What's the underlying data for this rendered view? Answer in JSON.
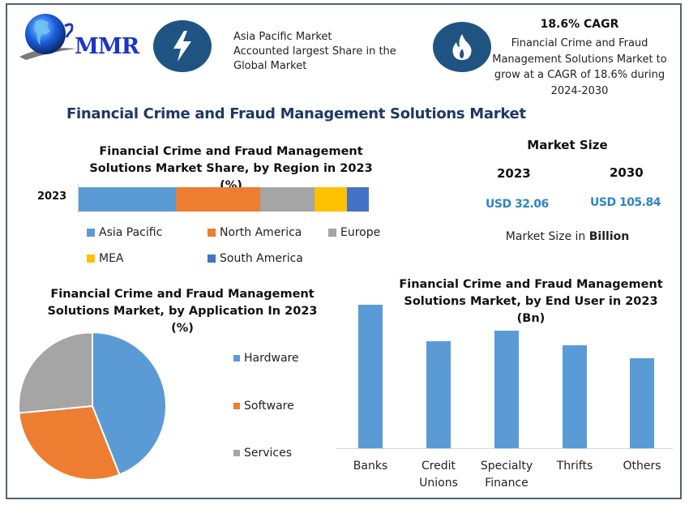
{
  "header": {
    "logo_text": "MMR",
    "info_left": {
      "icon": "lightning-icon",
      "lines": [
        "Asia Pacific Market",
        "Accounted largest Share in the",
        "Global Market"
      ]
    },
    "info_right": {
      "icon": "flame-icon",
      "title": "18.6% CAGR",
      "lines": [
        "Financial Crime and Fraud",
        "Management Solutions Market to",
        "grow at a CAGR of 18.6% during",
        "2024-2030"
      ]
    }
  },
  "main_title": "Financial Crime and Fraud Management Solutions Market",
  "market_size": {
    "title": "Market Size",
    "years": [
      "2023",
      "2030"
    ],
    "values": [
      "USD 32.06",
      "USD 105.84"
    ],
    "note_prefix": "Market Size in ",
    "note_bold": "Billion"
  },
  "colors": {
    "asia_pacific": "#5b9bd5",
    "north_america": "#ed7d31",
    "europe": "#a5a5a5",
    "mea": "#ffc000",
    "south_america": "#4472c4",
    "icon_circle": "#1f5482",
    "title_navy": "#1f3864",
    "value_blue": "#2e86c1"
  },
  "chart_data": [
    {
      "type": "bar",
      "orientation": "horizontal-stacked",
      "title": "Financial Crime and Fraud Management Solutions Market Share, by Region in 2023 (%)",
      "title_lines": [
        "Financial Crime and Fraud Management",
        "Solutions Market Share, by Region in 2023 (%)"
      ],
      "categories": [
        "2023"
      ],
      "series": [
        {
          "name": "Asia Pacific",
          "values": [
            33.5
          ],
          "color": "#5b9bd5"
        },
        {
          "name": "North America",
          "values": [
            29.0
          ],
          "color": "#ed7d31"
        },
        {
          "name": "Europe",
          "values": [
            18.7
          ],
          "color": "#a5a5a5"
        },
        {
          "name": "MEA",
          "values": [
            11.2
          ],
          "color": "#ffc000"
        },
        {
          "name": "South America",
          "values": [
            7.6
          ],
          "color": "#4472c4"
        }
      ],
      "xlabel": "",
      "ylabel": "",
      "legend_position": "bottom",
      "grid": false
    },
    {
      "type": "pie",
      "title": "Financial Crime and Fraud Management Solutions Market, by Application In 2023 (%)",
      "title_lines": [
        "Financial Crime and Fraud Management",
        "Solutions Market, by Application In 2023",
        "(%)"
      ],
      "categories": [
        "Hardware",
        "Software",
        "Services"
      ],
      "values": [
        44,
        29.5,
        26.5
      ],
      "colors": [
        "#5b9bd5",
        "#ed7d31",
        "#a5a5a5"
      ],
      "legend_position": "right"
    },
    {
      "type": "bar",
      "title": "Financial Crime and Fraud Management Solutions Market, by End User in 2023 (Bn)",
      "title_lines": [
        "Financial Crime and Fraud Management",
        "Solutions Market, by End User in 2023",
        "(Bn)"
      ],
      "categories": [
        "Banks",
        "Credit Unions",
        "Specialty Finance",
        "Thrifts",
        "Others"
      ],
      "category_lines": [
        [
          "Banks"
        ],
        [
          "Credit",
          "Unions"
        ],
        [
          "Specialty",
          "Finance"
        ],
        [
          "Thrifts"
        ],
        [
          "Others"
        ]
      ],
      "values": [
        177,
        132,
        145,
        127,
        111
      ],
      "value_note": "relative bar heights (no axis scale shown)",
      "color": "#5b9bd5",
      "xlabel": "",
      "ylabel": "",
      "grid": false
    }
  ]
}
